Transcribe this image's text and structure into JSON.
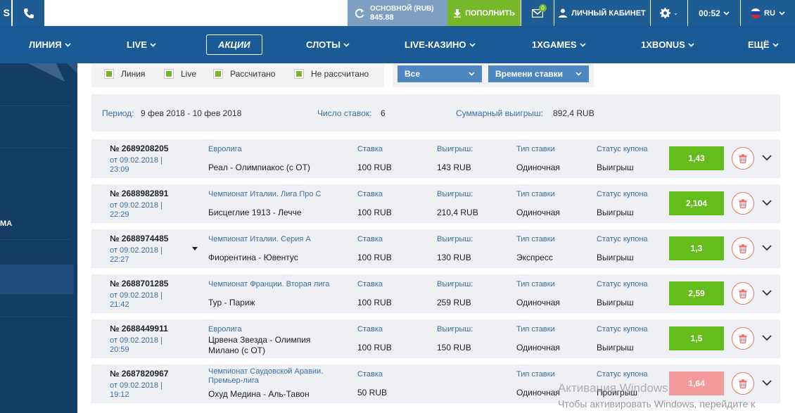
{
  "topbar": {
    "edge_glyph": "S",
    "balance": {
      "label": "ОСНОВНОЙ (RUB)",
      "amount": "845.88"
    },
    "deposit_label": "ПОПОЛНИТЬ",
    "mail_count": "0",
    "cabinet_label": "ЛИЧНЫЙ КАБИНЕТ",
    "time": "00:52",
    "language": "RU"
  },
  "nav": {
    "items": [
      "ЛИНИЯ",
      "LIVE",
      "АКЦИИ",
      "СЛОТЫ",
      "LIVE-КАЗИНО",
      "1XGAMES",
      "1XBONUS",
      "ЕЩЁ"
    ]
  },
  "sidebar": {
    "stub_text": "МА"
  },
  "filters": {
    "checkboxes": [
      "Линия",
      "Live",
      "Рассчитано",
      "Не рассчитано"
    ],
    "select_all": "Все",
    "select_sort": "Времени ставки"
  },
  "summary": {
    "period_label": "Период:",
    "period_value": "9 фев 2018 - 10 фев 2018",
    "count_label": "Число ставок:",
    "count_value": "6",
    "total_label": "Суммарный выигрыш:",
    "total_value": "892,4 RUB"
  },
  "columns": {
    "stake": "Ставка",
    "win": "Выигрыш:",
    "type": "Тип ставки",
    "status": "Статус купона"
  },
  "bets": [
    {
      "number": "№ 2689208205",
      "date": "от 09.02.2018 | 23:09",
      "league": "Евролига",
      "match": "Реал - Олимпиакос (с ОТ)",
      "stake": "100 RUB",
      "win": "143 RUB",
      "type": "Одиночная",
      "status": "Выигрыш",
      "odds": "1,43"
    },
    {
      "number": "№ 2688982891",
      "date": "от 09.02.2018 | 22:29",
      "league": "Чемпионат Италии. Лига Про С",
      "match": "Бисцеглие 1913 - Лечче",
      "stake": "100 RUB",
      "win": "210,4 RUB",
      "type": "Одиночная",
      "status": "Выигрыш",
      "odds": "2,104"
    },
    {
      "number": "№ 2688974485",
      "date": "от 09.02.2018 | 22:27",
      "league": "Чемпионат Италии. Серия А",
      "match": "Фиорентина - Ювентус",
      "stake": "100 RUB",
      "win": "130 RUB",
      "type": "Экспресс",
      "status": "Выигрыш",
      "odds": "1,3"
    },
    {
      "number": "№ 2688701285",
      "date": "от 09.02.2018 | 21:42",
      "league": "Чемпионат Франции. Вторая лига",
      "match": "Тур - Париж",
      "stake": "100 RUB",
      "win": "259 RUB",
      "type": "Одиночная",
      "status": "Выигрыш",
      "odds": "2,59"
    },
    {
      "number": "№ 2688449911",
      "date": "от 09.02.2018 | 20:59",
      "league": "Евролига",
      "match": "Црвена Звезда - Олимпия Милано (с ОТ)",
      "stake": "100 RUB",
      "win": "150 RUB",
      "type": "Одиночная",
      "status": "Выигрыш",
      "odds": "1,5"
    },
    {
      "number": "№ 2687820967",
      "date": "от 09.02.2018 | 19:12",
      "league": "Чемпионат Саудовской Аравии. Премьер-лига",
      "match": "Охуд Медина - Аль-Тавон",
      "stake": "50 RUB",
      "win": "",
      "type": "Одиночная",
      "status": "Проигрыш",
      "odds": "1,64"
    }
  ],
  "watermark": {
    "line1": "Активация Windows",
    "line2": "Чтобы активировать Windows, перейдите к"
  },
  "colors": {
    "brand_dark": "#1f5c94",
    "nav": "#1a5a96",
    "sidebar": "#143d66",
    "balance": "#7f9fc2",
    "green": "#76b82a",
    "odds_win": "#64bd1c",
    "odds_lost": "#f49a9a",
    "trash": "#e76b6b"
  }
}
